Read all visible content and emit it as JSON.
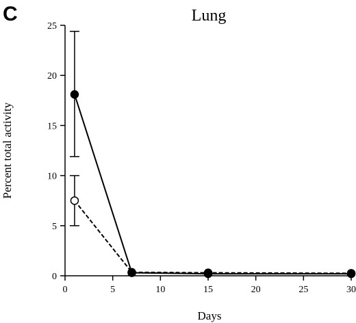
{
  "panel_label": "C",
  "chart_data": {
    "type": "line",
    "title": "Lung",
    "xlabel": "Days",
    "ylabel": "Percent total activity",
    "xlim": [
      0,
      30
    ],
    "ylim": [
      0,
      25
    ],
    "xticks": [
      0,
      5,
      10,
      15,
      20,
      25,
      30
    ],
    "yticks": [
      0,
      5,
      10,
      15,
      20,
      25
    ],
    "grid": false,
    "legend": "none",
    "series": [
      {
        "marker": "filled-circle",
        "line_style": "solid",
        "color": "#000000",
        "x": [
          1,
          7,
          15,
          30
        ],
        "y": [
          18.1,
          0.3,
          0.2,
          0.2
        ],
        "error_low": [
          11.9,
          null,
          null,
          null
        ],
        "error_high": [
          24.4,
          null,
          null,
          null
        ]
      },
      {
        "marker": "open-circle",
        "line_style": "dashed",
        "color": "#000000",
        "x": [
          1,
          7,
          15,
          30
        ],
        "y": [
          7.5,
          0.35,
          0.3,
          0.25
        ],
        "error_low": [
          5.0,
          null,
          null,
          null
        ],
        "error_high": [
          10.0,
          null,
          null,
          null
        ]
      }
    ]
  }
}
